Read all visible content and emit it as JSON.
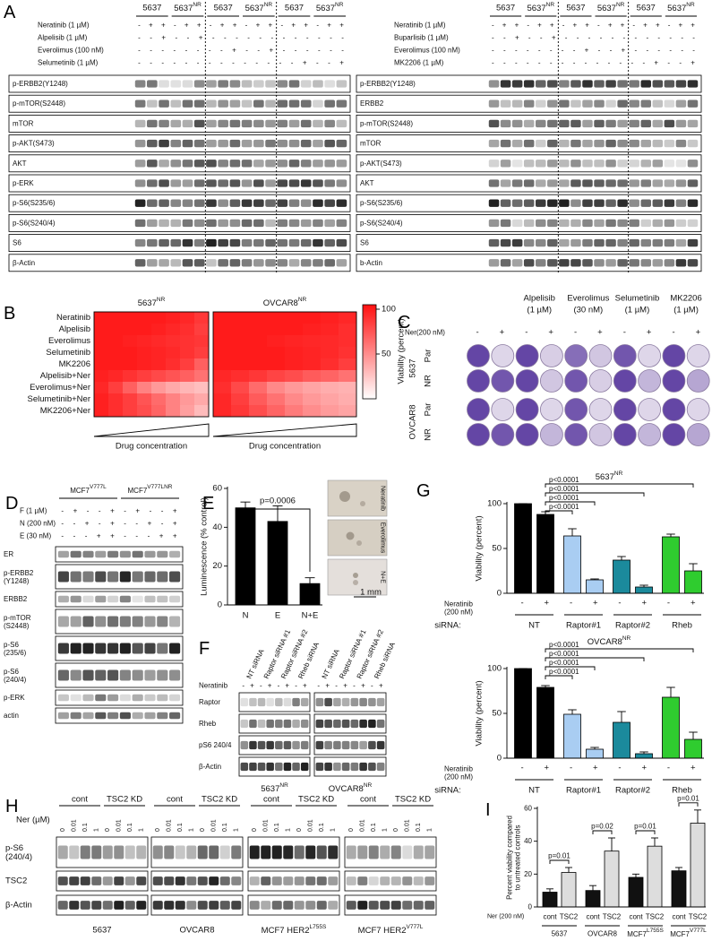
{
  "panels": {
    "A": {
      "letter": "A",
      "left": {
        "cells": [
          "5637",
          {
            "text": "5637",
            "sup": "NR"
          },
          "5637",
          {
            "text": "5637",
            "sup": "NR"
          },
          "5637",
          {
            "text": "5637",
            "sup": "NR"
          }
        ],
        "treatments": [
          {
            "label": "Neratinib (1 µM)",
            "signs": "- + + - + + - + + - + + - + + - + +"
          },
          {
            "label": "Alpelisib (1 µM)",
            "signs": "- - + - - + - - - - - - - - - - - -"
          },
          {
            "label": "Everolimus (100 nM)",
            "signs": "- - - - - - - - + - - + - - - - - -"
          },
          {
            "label": "Selumetinib (1 µM)",
            "signs": "- - - - - - - - - - - - - - + - - +"
          }
        ],
        "blots": [
          "p-ERBB2(Y1248)",
          "p-mTOR(S2448)",
          "mTOR",
          "p-AKT(S473)",
          "AKT",
          "p-ERK",
          "p-S6(S235/6)",
          "p-S6(S240/4)",
          "S6",
          "β-Actin"
        ]
      },
      "right": {
        "cells": [
          "5637",
          {
            "text": "5637",
            "sup": "NR"
          },
          "5637",
          {
            "text": "5637",
            "sup": "NR"
          },
          "5637",
          {
            "text": "5637",
            "sup": "NR"
          }
        ],
        "treatments": [
          {
            "label": "Neratinib (1 µM)",
            "signs": "- + + - + + - + + - + + - + + - + +"
          },
          {
            "label": "Buparlisib (1 µM)",
            "signs": "- - + - - + - - - - - - - - - - - -"
          },
          {
            "label": "Everolimus (100 nM)",
            "signs": "- - - - - - - - + - - + - - - - - -"
          },
          {
            "label": "MK2206 (1 µM)",
            "signs": "- - - - - - - - - - - - - - + - - +"
          }
        ],
        "blots": [
          "p-ERBB2(Y1248)",
          "ERBB2",
          "p-mTOR(S2448)",
          "mTOR",
          "p-AKT(S473)",
          "AKT",
          "p-S6(S235/6)",
          "p-S6(S240/4)",
          "S6",
          "b-Actin"
        ]
      }
    },
    "B": {
      "letter": "B",
      "rows": [
        "Neratinib",
        "Alpelisib",
        "Everolimus",
        "Selumetinib",
        "MK2206",
        "Alpelisib+Ner",
        "Everolimus+Ner",
        "Selumetinib+Ner",
        "MK2206+Ner"
      ],
      "xlabel": "Drug concentration",
      "clabel": "Viability (percent)",
      "clim": [
        0,
        105
      ],
      "cticks": [
        50,
        100
      ],
      "colors": [
        "#ffffff",
        "#ff1010"
      ],
      "maps": [
        {
          "title": {
            "text": "5637",
            "sup": "NR"
          },
          "values": [
            [
              100,
              100,
              100,
              100,
              100,
              98,
              95,
              88
            ],
            [
              100,
              100,
              100,
              100,
              98,
              95,
              92,
              85
            ],
            [
              100,
              100,
              98,
              96,
              94,
              92,
              90,
              88
            ],
            [
              100,
              100,
              100,
              98,
              96,
              94,
              90,
              85
            ],
            [
              100,
              100,
              100,
              98,
              96,
              92,
              85,
              70
            ],
            [
              98,
              95,
              90,
              85,
              80,
              75,
              70,
              62
            ],
            [
              95,
              85,
              70,
              55,
              45,
              38,
              32,
              28
            ],
            [
              98,
              92,
              85,
              75,
              65,
              55,
              45,
              38
            ],
            [
              98,
              92,
              85,
              78,
              68,
              55,
              42,
              30
            ]
          ]
        },
        {
          "title": {
            "text": "OVCAR8",
            "sup": "NR"
          },
          "values": [
            [
              100,
              100,
              100,
              100,
              100,
              100,
              98,
              95
            ],
            [
              100,
              100,
              100,
              100,
              100,
              98,
              96,
              92
            ],
            [
              100,
              100,
              100,
              98,
              96,
              95,
              94,
              92
            ],
            [
              100,
              100,
              100,
              100,
              98,
              96,
              94,
              90
            ],
            [
              100,
              100,
              100,
              100,
              98,
              96,
              92,
              85
            ],
            [
              95,
              92,
              88,
              82,
              78,
              72,
              68,
              62
            ],
            [
              92,
              80,
              65,
              52,
              45,
              40,
              36,
              34
            ],
            [
              95,
              85,
              72,
              62,
              52,
              45,
              40,
              36
            ],
            [
              95,
              88,
              78,
              68,
              58,
              50,
              44,
              40
            ]
          ]
        }
      ]
    },
    "C": {
      "letter": "C",
      "drugs": [
        {
          "name": "Alpelisib",
          "dose": "(1 µM)"
        },
        {
          "name": "Everolimus",
          "dose": "(30 nM)"
        },
        {
          "name": "Selumetinib",
          "dose": "(1 µM)"
        },
        {
          "name": "MK2206",
          "dose": "(1 µM)"
        }
      ],
      "ner": "Ner(200 nM)",
      "signs": "- + - + - + - + - +",
      "groups": [
        {
          "cell": "5637",
          "rows": [
            "Par",
            "NR"
          ]
        },
        {
          "cell": "OVCAR8",
          "rows": [
            "Par",
            "NR"
          ]
        }
      ]
    },
    "D": {
      "letter": "D",
      "cells": [
        {
          "text": "MCF7",
          "sup": "V777L"
        },
        {
          "text": "MCF7",
          "sup": "V777LNR"
        }
      ],
      "treatments": [
        {
          "label": "F (1 µM)",
          "signs": "- + - - + - + - - +"
        },
        {
          "label": "N (200 nM)",
          "signs": "- - + - + - - + - +"
        },
        {
          "label": "E (30 nM)",
          "signs": "- - - + + - - - + +"
        }
      ],
      "blots": [
        "ER",
        [
          "p-ERBB2",
          "(Y1248)"
        ],
        "ERBB2",
        [
          "p-mTOR",
          "(S2448)"
        ],
        [
          "p-S6",
          "(235/6)"
        ],
        [
          "p-S6",
          "(240/4)"
        ],
        "p-ERK",
        "actin"
      ]
    },
    "E": {
      "letter": "E",
      "ylabel": "Luminescence (% control)",
      "categories": [
        "N",
        "E",
        "N+E"
      ],
      "values": [
        50,
        43,
        11
      ],
      "errors": [
        3,
        8,
        3
      ],
      "color": "#000000",
      "ylim": [
        0,
        60
      ],
      "yticks": [
        0,
        20,
        40,
        60
      ],
      "pvalue": "p=0.0006",
      "images": [
        "Neratinib",
        "Everolimus",
        "N+E"
      ],
      "scale": "1 mm"
    },
    "F": {
      "letter": "F",
      "sirnas": [
        "NT siRNA",
        "Raptor siRNA #1",
        "Raptor siRNA #2",
        "Rheb siRNA"
      ],
      "treatment": "Neratinib",
      "signs": "- + - + - + - +",
      "blots": [
        "Raptor",
        "Rheb",
        "pS6 240/4",
        "β-Actin"
      ],
      "cells": [
        {
          "text": "5637",
          "sup": "NR"
        },
        {
          "text": "OVCAR8",
          "sup": "NR"
        }
      ]
    },
    "G": {
      "letter": "G",
      "charts": [
        {
          "title": {
            "text": "5637",
            "sup": "NR"
          },
          "ylabel": "Viability (percent)",
          "ylim": [
            0,
            100
          ],
          "yticks": [
            0,
            50,
            100
          ],
          "values": [
            100,
            88,
            64,
            15,
            37,
            7,
            63,
            25
          ],
          "errors": [
            0,
            3,
            8,
            1,
            4,
            2,
            3,
            8
          ],
          "colors": [
            "#000000",
            "#000000",
            "#a9cdf2",
            "#a9cdf2",
            "#1b8a9c",
            "#1b8a9c",
            "#2fcc2f",
            "#2fcc2f"
          ],
          "pvalues": [
            "p<0.0001",
            "p<0.0001",
            "p<0.0001",
            "p<0.0001"
          ],
          "treatment": [
            "Neratinib",
            "(200 nM)"
          ],
          "signs": "- + - + - + - +",
          "sirna": "siRNA:",
          "groups": [
            "NT",
            "Raptor#1",
            "Raptor#2",
            "Rheb"
          ]
        },
        {
          "title": {
            "text": "OVCAR8",
            "sup": "NR"
          },
          "ylabel": "Viability (percent)",
          "ylim": [
            0,
            100
          ],
          "yticks": [
            0,
            50,
            100
          ],
          "values": [
            100,
            79,
            49,
            10,
            40,
            5,
            68,
            21
          ],
          "errors": [
            0,
            2,
            5,
            2,
            12,
            2,
            11,
            8
          ],
          "colors": [
            "#000000",
            "#000000",
            "#a9cdf2",
            "#a9cdf2",
            "#1b8a9c",
            "#1b8a9c",
            "#2fcc2f",
            "#2fcc2f"
          ],
          "pvalues": [
            "p<0.0001",
            "p<0.0001",
            "p<0.0001",
            "p<0.0001"
          ],
          "treatment": [
            "Neratinib",
            "(200 nM)"
          ],
          "signs": "- + - + - + - +",
          "sirna": "siRNA:",
          "groups": [
            "NT",
            "Raptor#1",
            "Raptor#2",
            "Rheb"
          ]
        }
      ]
    },
    "H": {
      "letter": "H",
      "header": [
        "cont",
        "TSC2 KD"
      ],
      "ner": "Ner (µM)",
      "doses": [
        "0",
        "0.01",
        "0.1",
        "1"
      ],
      "blots": [
        [
          "p-S6",
          "(240/4)"
        ],
        "TSC2",
        "β-Actin"
      ],
      "cells": [
        "5637",
        "OVCAR8",
        {
          "text": "MCF7 HER2",
          "sup": "L755S"
        },
        {
          "text": "MCF7 HER2",
          "sup": "V777L"
        }
      ]
    },
    "I": {
      "letter": "I",
      "ylabel": [
        "Percent viability compared",
        "to untreated controls"
      ],
      "ylim": [
        0,
        60
      ],
      "yticks": [
        0,
        20,
        40,
        60
      ],
      "values": [
        9,
        21,
        10,
        34,
        18,
        37,
        22,
        51
      ],
      "errors": [
        2,
        3,
        3,
        8,
        2,
        5,
        2,
        8
      ],
      "colors": [
        "#111111",
        "#dddddd"
      ],
      "pvalues": [
        "p=0.01",
        "p=0.02",
        "p=0.01",
        "p=0.01"
      ],
      "ner": "Ner (200 nM)",
      "categories": [
        "cont",
        "TSC2",
        "cont",
        "TSC2",
        "cont",
        "TSC2",
        "cont",
        "TSC2"
      ],
      "groups": [
        "5637",
        "OVCAR8",
        {
          "text": "MCF7",
          "sup": "L755S"
        },
        {
          "text": "MCF7",
          "sup": "V777L"
        }
      ]
    }
  }
}
